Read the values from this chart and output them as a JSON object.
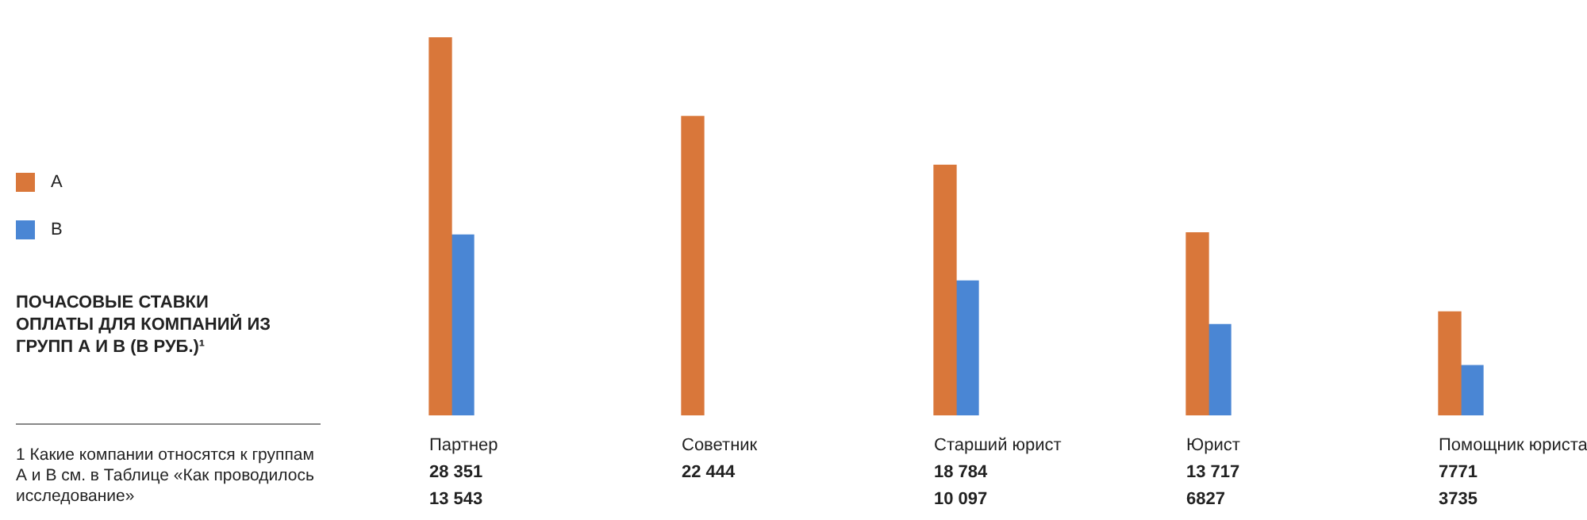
{
  "chart_data": {
    "type": "bar",
    "title": "ПОЧАСОВЫЕ СТАВКИ ОПЛАТЫ ДЛЯ КОМПАНИЙ ИЗ ГРУПП А И В (В РУБ.)¹",
    "categories": [
      "Партнер",
      "Советник",
      "Старший юрист",
      "Юрист",
      "Помощник юриста"
    ],
    "series": [
      {
        "name": "А",
        "color": "#d9773a",
        "values": [
          28351,
          22444,
          18784,
          13717,
          7771
        ]
      },
      {
        "name": "В",
        "color": "#4a86d4",
        "values": [
          13543,
          null,
          10097,
          6827,
          3735
        ]
      }
    ],
    "data_labels": true,
    "legend": "left",
    "annotations": [
      "1 Какие компании относятся к группам А и В см. в Таблице «Как проводилось исследование»"
    ]
  }
}
